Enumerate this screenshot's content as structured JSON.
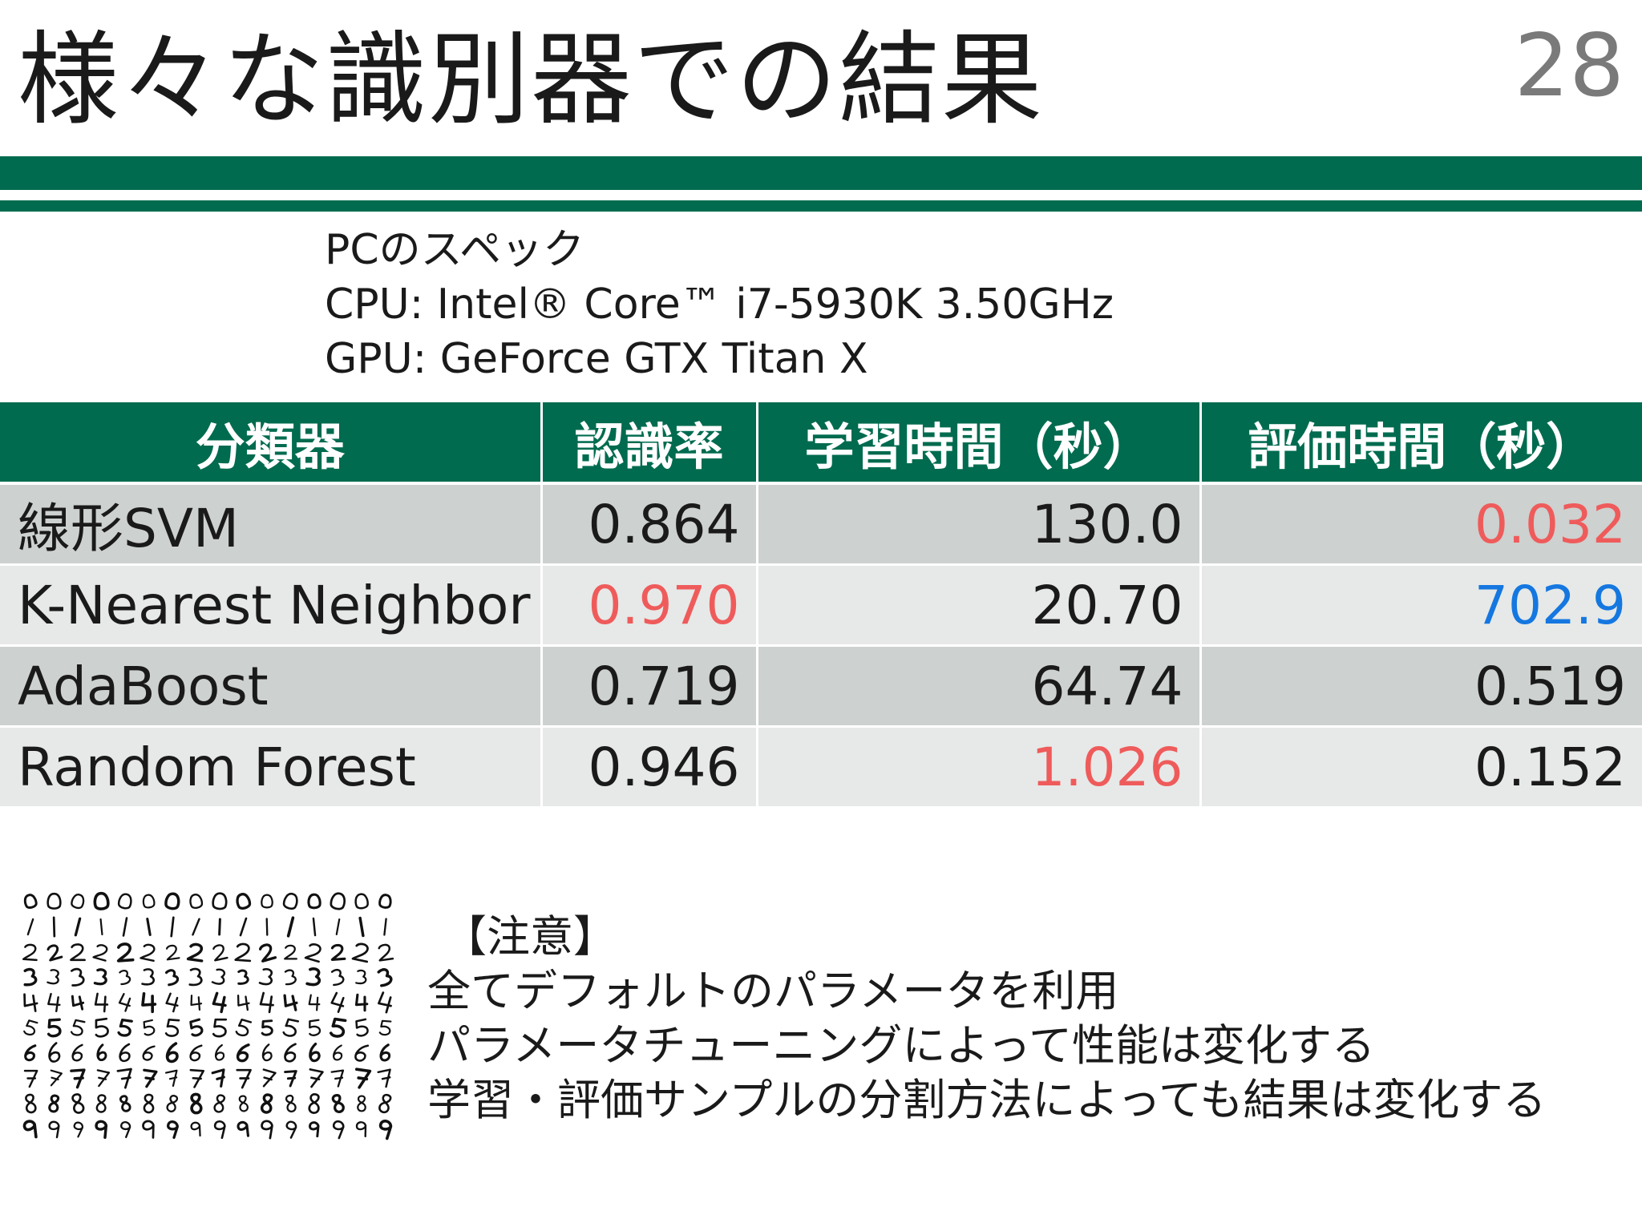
{
  "slide": {
    "title": "様々な識別器での結果",
    "page_number": "28"
  },
  "specs": {
    "heading": "PCのスペック",
    "cpu": "CPU: Intel® Core™ i7-5930K 3.50GHz",
    "gpu": "GPU: GeForce GTX Titan X"
  },
  "table": {
    "headers": [
      "分類器",
      "認識率",
      "学習時間（秒）",
      "評価時間（秒）"
    ],
    "rows": [
      {
        "name": "線形SVM",
        "accuracy": "0.864",
        "train_time": "130.0",
        "eval_time": "0.032"
      },
      {
        "name": "K-Nearest Neighbor",
        "accuracy": "0.970",
        "train_time": "20.70",
        "eval_time": "702.9"
      },
      {
        "name": "AdaBoost",
        "accuracy": "0.719",
        "train_time": "64.74",
        "eval_time": "0.519"
      },
      {
        "name": "Random Forest",
        "accuracy": "0.946",
        "train_time": "1.026",
        "eval_time": "0.152"
      }
    ]
  },
  "notes": {
    "heading": "【注意】",
    "lines": [
      "全てデフォルトのパラメータを利用",
      "パラメータチューニングによって性能は変化する",
      "学習・評価サンプルの分割方法によっても結果は変化する"
    ]
  },
  "colors": {
    "brand_green": "#006b4f",
    "highlight_best": "#ef5b5b",
    "highlight_worst": "#1577e0",
    "row_dark": "#cdd1cf",
    "row_light": "#e6e9e7"
  }
}
